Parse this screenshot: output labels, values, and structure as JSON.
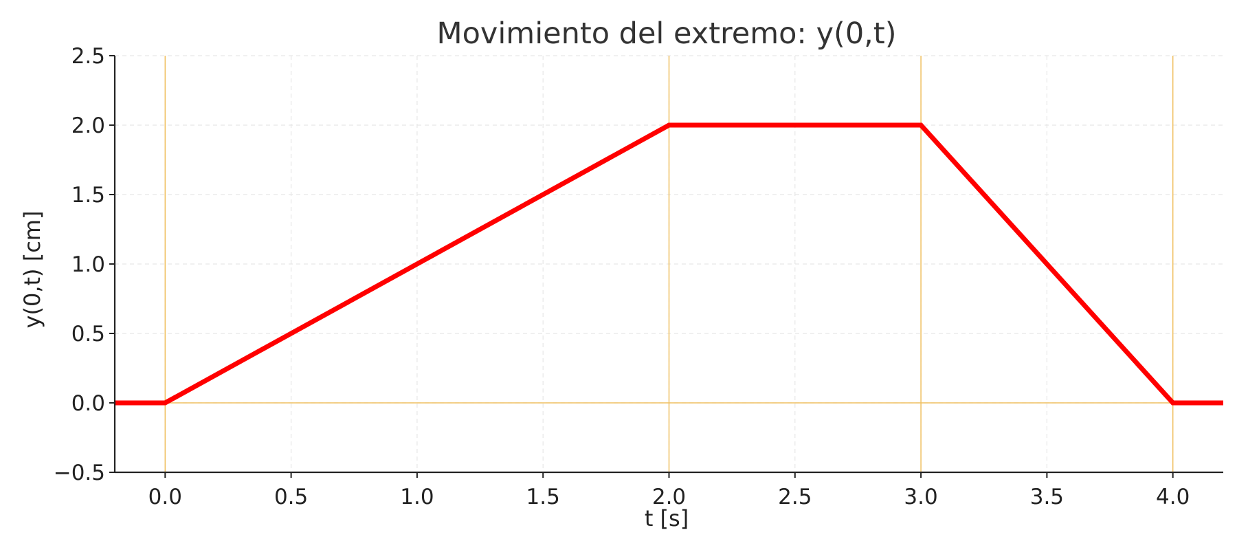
{
  "chart_data": {
    "type": "line",
    "title": "Movimiento del extremo: y(0,t)",
    "xlabel": "t [s]",
    "ylabel": "y(0,t) [cm]",
    "xlim": [
      -0.2,
      4.2
    ],
    "ylim": [
      -0.5,
      2.5
    ],
    "xticks": [
      0.0,
      0.5,
      1.0,
      1.5,
      2.0,
      2.5,
      3.0,
      3.5,
      4.0
    ],
    "xtick_labels": [
      "0.0",
      "0.5",
      "1.0",
      "1.5",
      "2.0",
      "2.5",
      "3.0",
      "3.5",
      "4.0"
    ],
    "yticks": [
      -0.5,
      0.0,
      0.5,
      1.0,
      1.5,
      2.0,
      2.5
    ],
    "ytick_labels": [
      "−0.5",
      "0.0",
      "0.5",
      "1.0",
      "1.5",
      "2.0",
      "2.5"
    ],
    "grid": true,
    "series": [
      {
        "x": [
          -0.2,
          0.0,
          2.0,
          3.0,
          4.0,
          4.2
        ],
        "y": [
          0.0,
          0.0,
          2.0,
          2.0,
          0.0,
          0.0
        ],
        "color": "#ff0000"
      }
    ],
    "reference_lines": {
      "vertical_x": [
        0.0,
        2.0,
        3.0,
        4.0
      ],
      "horizontal_y": [
        0.0
      ],
      "color": "#f0c060"
    }
  }
}
